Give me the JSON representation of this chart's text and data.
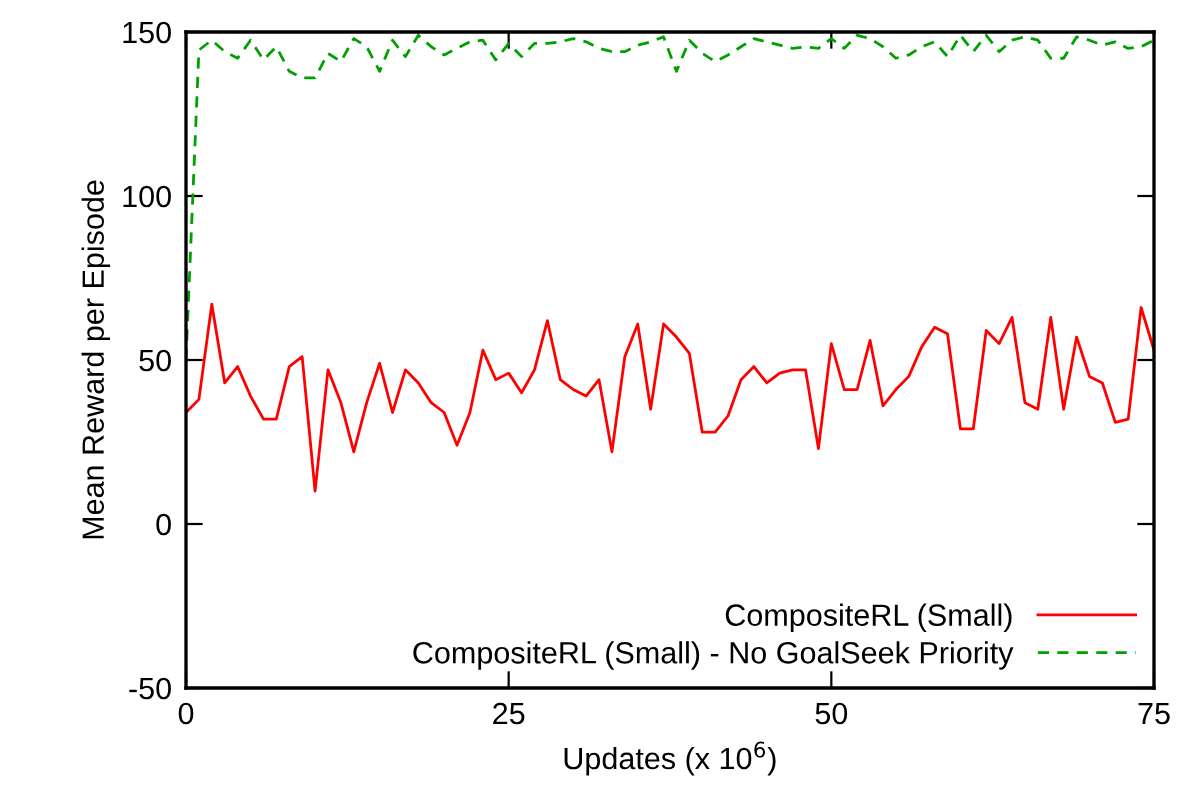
{
  "chart_data": {
    "type": "line",
    "xlabel": "Updates (x 10$^{6}$)",
    "ylabel": "Mean Reward per Episode",
    "xlim": [
      0,
      75
    ],
    "xticks": [
      0,
      25,
      50,
      75
    ],
    "ylim": [
      -50,
      150
    ],
    "yticks": [
      -50,
      0,
      50,
      100,
      150
    ],
    "grid": false,
    "legend": "bottom right",
    "x": [
      0,
      1,
      2,
      3,
      4,
      5,
      6,
      7,
      8,
      9,
      10,
      11,
      12,
      13,
      14,
      15,
      16,
      17,
      18,
      19,
      20,
      21,
      22,
      23,
      24,
      25,
      26,
      27,
      28,
      29,
      30,
      31,
      32,
      33,
      34,
      35,
      36,
      37,
      38,
      39,
      40,
      41,
      42,
      43,
      44,
      45,
      46,
      47,
      48,
      49,
      50,
      51,
      52,
      53,
      54,
      55,
      56,
      57,
      58,
      59,
      60,
      61,
      62,
      63,
      64,
      65,
      66,
      67,
      68,
      69,
      70,
      71,
      72,
      73,
      74,
      75
    ],
    "series": [
      {
        "name": "CompositeRL (Small)",
        "color": "#ff0000",
        "line_style": "solid",
        "values": [
          34,
          38,
          67,
          43,
          48,
          39,
          32,
          32,
          48,
          51,
          10,
          47,
          37,
          22,
          37,
          49,
          34,
          47,
          43,
          37,
          34,
          24,
          34,
          53,
          44,
          46,
          40,
          47,
          62,
          44,
          41,
          39,
          44,
          22,
          51,
          61,
          35,
          61,
          57,
          52,
          28,
          28,
          33,
          44,
          48,
          43,
          46,
          47,
          47,
          23,
          55,
          41,
          41,
          56,
          36,
          41,
          45,
          54,
          60,
          58,
          29,
          29,
          59,
          55,
          63,
          37,
          35,
          63,
          35,
          57,
          45,
          43,
          31,
          32,
          66,
          53
        ]
      },
      {
        "name": "CompositeRL (Small) - No GoalSeek Priority",
        "color": "#00a000",
        "line_style": "dashed",
        "values": [
          50,
          144.5,
          147.5,
          144,
          142,
          147.5,
          141.5,
          145.5,
          138,
          136,
          136,
          143.5,
          141,
          148,
          145.5,
          138,
          147.5,
          142.5,
          149,
          145.5,
          143,
          145,
          147,
          147.5,
          141.5,
          146.5,
          142.5,
          146.5,
          146.5,
          147,
          148,
          147,
          145,
          144,
          144,
          146,
          147,
          148.5,
          138,
          147.5,
          143.5,
          141,
          143,
          145.5,
          148,
          147,
          146,
          145,
          145.5,
          145,
          148,
          145,
          149,
          148,
          145.5,
          142,
          143,
          145.5,
          147,
          142.5,
          149,
          144,
          149,
          144,
          147.5,
          148.5,
          147.5,
          142,
          142,
          148.5,
          147.5,
          146,
          147,
          145,
          145.5,
          147.5
        ]
      }
    ]
  }
}
